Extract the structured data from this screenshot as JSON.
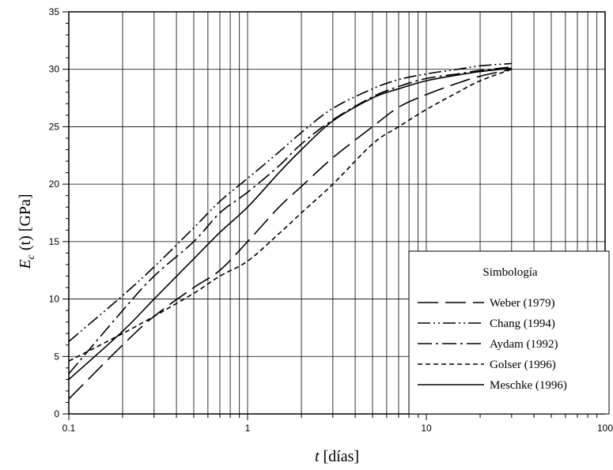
{
  "chart_data": {
    "type": "line",
    "xlabel": {
      "var": "t",
      "unit": "[días]"
    },
    "ylabel": {
      "var": "E",
      "sub": "c",
      "arg": "(t)",
      "unit": "[GPa]"
    },
    "xscale": "log",
    "xlim": [
      0.1,
      100
    ],
    "ylim": [
      0,
      35
    ],
    "x_ticks": [
      0.1,
      1,
      10,
      100
    ],
    "x_tick_labels": [
      "0.1",
      "1",
      "10",
      "100"
    ],
    "y_ticks": [
      0,
      5,
      10,
      15,
      20,
      25,
      30,
      35
    ],
    "y_tick_labels": [
      "0",
      "5",
      "10",
      "15",
      "20",
      "25",
      "30",
      "35"
    ],
    "grid": true,
    "legend": {
      "title": "Simbología",
      "placement": "bottom-right"
    },
    "series": [
      {
        "name": "Weber (1979)",
        "dash": "26,9",
        "x": [
          0.1,
          0.2,
          0.3,
          0.5,
          0.7,
          1,
          1.5,
          2,
          3,
          5,
          7,
          10,
          15,
          20,
          30
        ],
        "y": [
          1.3,
          6.0,
          8.5,
          11.0,
          12.5,
          15.0,
          18.0,
          19.8,
          22.3,
          25.0,
          26.7,
          27.8,
          28.8,
          29.4,
          30.0
        ]
      },
      {
        "name": "Chang (1994)",
        "dash": "16,4,2,4,2,4",
        "x": [
          0.1,
          0.2,
          0.3,
          0.5,
          0.7,
          1,
          1.5,
          2,
          3,
          5,
          7,
          10,
          15,
          20,
          30
        ],
        "y": [
          6.3,
          10.3,
          12.8,
          16.2,
          18.5,
          20.5,
          22.8,
          24.5,
          26.6,
          28.3,
          29.1,
          29.6,
          30.0,
          30.3,
          30.5
        ]
      },
      {
        "name": "Aydam (1992)",
        "dash": "18,5,3,5",
        "x": [
          0.1,
          0.2,
          0.3,
          0.5,
          0.7,
          1,
          1.5,
          2,
          3,
          5,
          7,
          10,
          15,
          20,
          30
        ],
        "y": [
          3.5,
          9.0,
          12.0,
          15.0,
          17.5,
          19.3,
          21.6,
          23.5,
          25.6,
          27.6,
          28.5,
          29.2,
          29.6,
          29.9,
          30.2
        ]
      },
      {
        "name": "Golser (1996)",
        "dash": "6,4",
        "x": [
          0.1,
          0.2,
          0.3,
          0.5,
          0.7,
          1,
          1.5,
          2,
          3,
          5,
          7,
          10,
          15,
          20,
          30
        ],
        "y": [
          4.6,
          7.0,
          8.5,
          10.5,
          12.0,
          13.3,
          15.7,
          17.5,
          20.0,
          23.5,
          25.0,
          26.5,
          28.0,
          29.0,
          30.0
        ]
      },
      {
        "name": "Meschke (1996)",
        "dash": "",
        "x": [
          0.1,
          0.2,
          0.3,
          0.5,
          0.7,
          1,
          1.5,
          2,
          3,
          5,
          7,
          10,
          15,
          20,
          30
        ],
        "y": [
          3.0,
          7.2,
          10.0,
          13.5,
          15.8,
          18.0,
          21.0,
          23.0,
          25.5,
          27.5,
          28.3,
          29.0,
          29.5,
          29.8,
          30.1
        ]
      }
    ]
  }
}
